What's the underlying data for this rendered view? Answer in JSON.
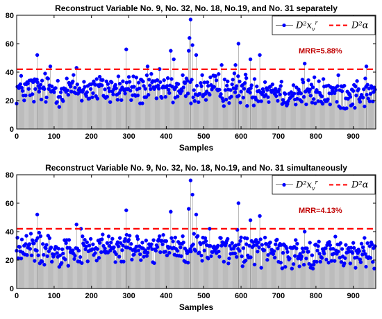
{
  "chart_data": [
    {
      "type": "scatter",
      "title": "Reconstruct Variable No. 9, No. 32, No. 18, No.19, and No. 31 separately",
      "xlabel": "Samples",
      "ylabel": "",
      "xlim": [
        0,
        960
      ],
      "ylim": [
        0,
        80
      ],
      "xticks": [
        0,
        100,
        200,
        300,
        400,
        500,
        600,
        700,
        800,
        900
      ],
      "yticks": [
        0,
        20,
        40,
        60,
        80
      ],
      "grid": false,
      "legend_position": "top-right",
      "threshold": 42,
      "annotation": "MRR=5.88%",
      "series": [
        {
          "name": "D²_{x_v^r}",
          "color": "#0000ff",
          "style": "stem with filled circle markers",
          "mean": 28,
          "spread": 5.5,
          "peaks": [
            {
              "x": 55,
              "y": 52
            },
            {
              "x": 90,
              "y": 44
            },
            {
              "x": 160,
              "y": 43
            },
            {
              "x": 293,
              "y": 56
            },
            {
              "x": 350,
              "y": 44
            },
            {
              "x": 412,
              "y": 55
            },
            {
              "x": 420,
              "y": 49
            },
            {
              "x": 460,
              "y": 55
            },
            {
              "x": 462,
              "y": 64
            },
            {
              "x": 465,
              "y": 77
            },
            {
              "x": 470,
              "y": 59
            },
            {
              "x": 480,
              "y": 52
            },
            {
              "x": 548,
              "y": 45
            },
            {
              "x": 585,
              "y": 45
            },
            {
              "x": 593,
              "y": 60
            },
            {
              "x": 625,
              "y": 49
            },
            {
              "x": 650,
              "y": 52
            },
            {
              "x": 770,
              "y": 46
            },
            {
              "x": 935,
              "y": 44
            }
          ]
        },
        {
          "name": "D²_α",
          "color": "#ff0000",
          "style": "dashed line",
          "value": 42
        }
      ],
      "legend": {
        "series1": "D²x",
        "series1_sub": "v",
        "series1_sup": "r",
        "series2": "D²α"
      }
    },
    {
      "type": "scatter",
      "title": "Reconstruct Variable No. 9, No. 32, No. 18, No.19, and No. 31 simultaneously",
      "xlabel": "Samples",
      "ylabel": "",
      "xlim": [
        0,
        960
      ],
      "ylim": [
        0,
        80
      ],
      "xticks": [
        0,
        100,
        200,
        300,
        400,
        500,
        600,
        700,
        800,
        900
      ],
      "yticks": [
        0,
        20,
        40,
        60,
        80
      ],
      "grid": false,
      "legend_position": "top-right",
      "threshold": 42,
      "annotation": "MRR=4.13%",
      "series": [
        {
          "name": "D²_{x_v^r}",
          "color": "#0000ff",
          "style": "stem with filled circle markers",
          "mean": 28,
          "spread": 5.5,
          "peaks": [
            {
              "x": 55,
              "y": 52
            },
            {
              "x": 160,
              "y": 45
            },
            {
              "x": 293,
              "y": 55
            },
            {
              "x": 412,
              "y": 54
            },
            {
              "x": 460,
              "y": 56
            },
            {
              "x": 465,
              "y": 76
            },
            {
              "x": 470,
              "y": 66
            },
            {
              "x": 480,
              "y": 52
            },
            {
              "x": 593,
              "y": 60
            },
            {
              "x": 625,
              "y": 48
            },
            {
              "x": 650,
              "y": 51
            },
            {
              "x": 770,
              "y": 40
            }
          ]
        },
        {
          "name": "D²_α",
          "color": "#ff0000",
          "style": "dashed line",
          "value": 42
        }
      ],
      "legend": {
        "series1": "D²x",
        "series1_sub": "v",
        "series1_sup": "r",
        "series2": "D²α"
      }
    }
  ]
}
